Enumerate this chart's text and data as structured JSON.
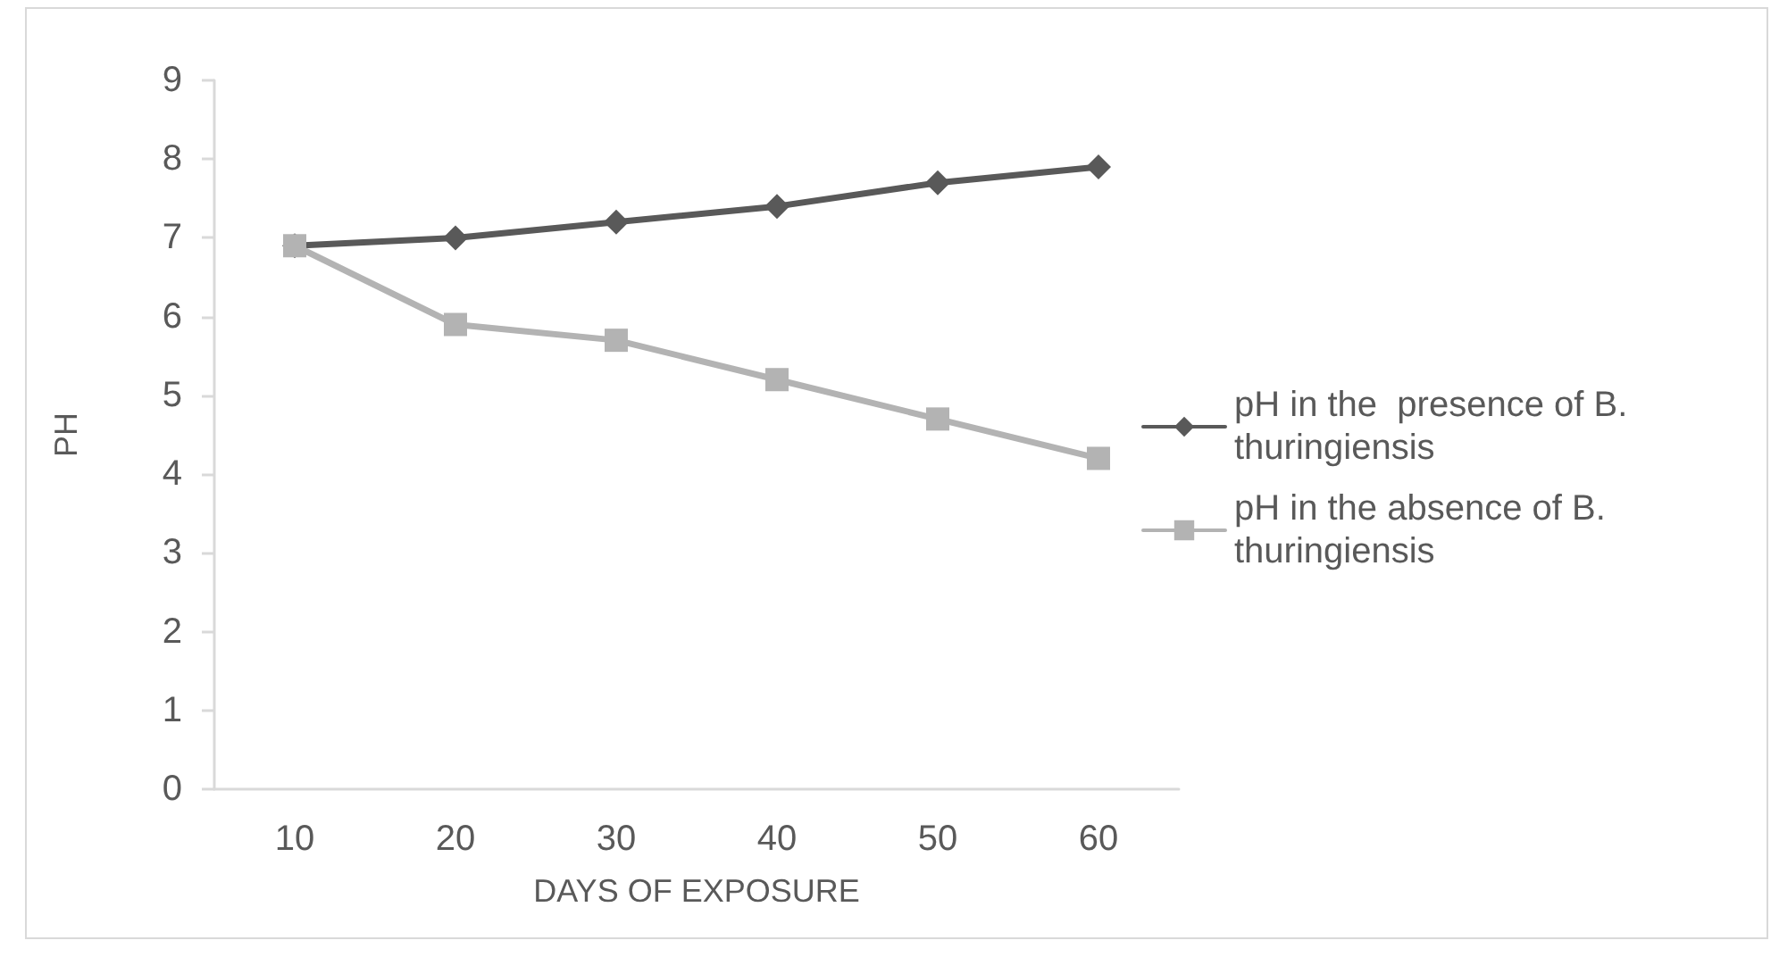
{
  "chart_data": {
    "type": "line",
    "xlabel": "DAYS OF EXPOSURE",
    "ylabel": "PH",
    "categories": [
      "10",
      "20",
      "30",
      "40",
      "50",
      "60"
    ],
    "series": [
      {
        "name": "pH in the  presence of B. thuringiensis",
        "color": "#595959",
        "marker": "diamond",
        "values": [
          6.9,
          7.0,
          7.2,
          7.4,
          7.7,
          7.9
        ]
      },
      {
        "name": "pH in the absence of B. thuringiensis",
        "color": "#b3b3b3",
        "marker": "square",
        "values": [
          6.9,
          5.9,
          5.7,
          5.2,
          4.7,
          4.2
        ]
      }
    ],
    "ylim": [
      0,
      9
    ],
    "yticks": [
      0,
      1,
      2,
      3,
      4,
      5,
      6,
      7,
      8,
      9
    ],
    "grid": false,
    "legend": "right"
  }
}
